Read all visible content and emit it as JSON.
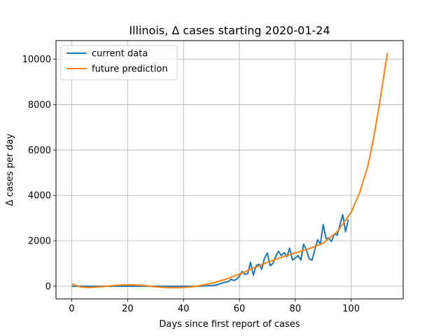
{
  "chart_data": {
    "type": "line",
    "title": "Illinois, Δ cases starting 2020-01-24",
    "xlabel": "Days since first report of cases",
    "ylabel": "Δ cases per day",
    "xlim": [
      -5.65,
      118.65
    ],
    "ylim": [
      -560,
      10820
    ],
    "xticks": [
      0,
      20,
      40,
      60,
      80,
      100
    ],
    "yticks": [
      0,
      2000,
      4000,
      6000,
      8000,
      10000
    ],
    "grid": true,
    "legend_position": "top-left",
    "series": [
      {
        "name": "current data",
        "color": "#1f77b4",
        "x": [
          0,
          2,
          4,
          6,
          8,
          10,
          12,
          14,
          16,
          18,
          20,
          22,
          24,
          26,
          28,
          30,
          32,
          34,
          36,
          38,
          40,
          42,
          44,
          46,
          48,
          50,
          51,
          52,
          53,
          54,
          55,
          56,
          57,
          58,
          59,
          60,
          61,
          62,
          63,
          64,
          65,
          66,
          67,
          68,
          69,
          70,
          71,
          72,
          73,
          74,
          75,
          76,
          77,
          78,
          79,
          80,
          81,
          82,
          83,
          84,
          85,
          86,
          87,
          88,
          89,
          90,
          91,
          92,
          93,
          94,
          95,
          96,
          97,
          98,
          99
        ],
        "y": [
          0,
          0,
          0,
          0,
          0,
          0,
          0,
          0,
          0,
          0,
          0,
          0,
          0,
          0,
          0,
          0,
          0,
          0,
          0,
          0,
          0,
          0,
          0,
          0,
          10,
          30,
          40,
          60,
          100,
          150,
          180,
          200,
          310,
          250,
          300,
          440,
          650,
          520,
          560,
          1050,
          480,
          900,
          970,
          750,
          1230,
          1460,
          900,
          1000,
          1300,
          1540,
          1350,
          1480,
          1300,
          1670,
          1150,
          1240,
          1350,
          1150,
          1850,
          1600,
          1200,
          1150,
          1600,
          2050,
          1850,
          2720,
          2100,
          2120,
          1970,
          2300,
          2250,
          2700,
          3150,
          2400,
          2950
        ]
      },
      {
        "name": "future prediction",
        "color": "#ff7f0e",
        "x": [
          0,
          3,
          6,
          10,
          15,
          20,
          25,
          30,
          35,
          40,
          45,
          50,
          55,
          60,
          65,
          70,
          75,
          80,
          85,
          90,
          95,
          100,
          103,
          106,
          108,
          110,
          112,
          113
        ],
        "y": [
          100,
          -30,
          -60,
          -30,
          30,
          60,
          40,
          -30,
          -70,
          -60,
          0,
          130,
          300,
          530,
          800,
          1050,
          1270,
          1470,
          1650,
          1900,
          2400,
          3250,
          4100,
          5300,
          6500,
          7900,
          9500,
          10280
        ]
      }
    ]
  }
}
